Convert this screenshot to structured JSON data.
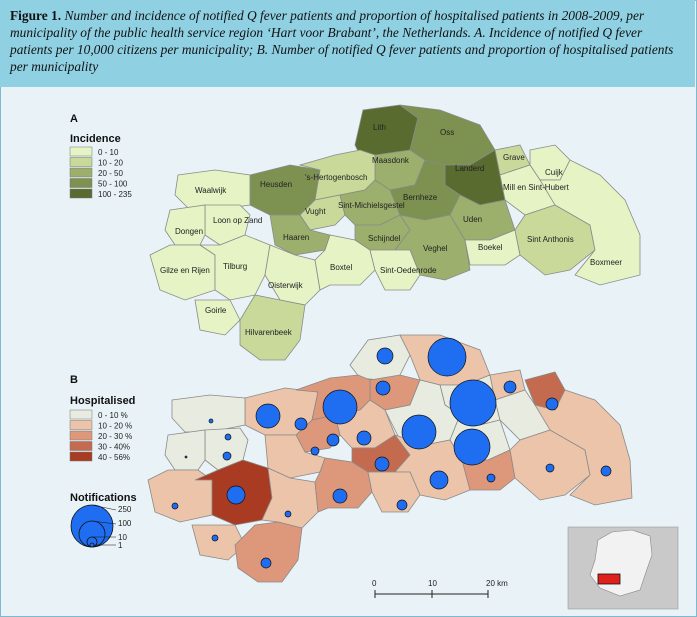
{
  "caption": {
    "fig": "Figure 1.",
    "text": "Number and incidence of notified Q fever patients and proportion of hospitalised patients in 2008-2009, per municipality of the public health service region ‘Hart voor Brabant’, the Netherlands. A. Incidence of notified Q fever patients per 10,000 citizens per municipality; B. Number of notified Q fever patients and proportion of hospitalised patients per municipality"
  },
  "panelA": {
    "letter": "A",
    "legend_title": "Incidence",
    "legend": [
      {
        "label": "0 - 10",
        "color": "#e5f3c5"
      },
      {
        "label": "10 - 20",
        "color": "#c8d99a"
      },
      {
        "label": "20 - 50",
        "color": "#9caf6c"
      },
      {
        "label": "50 - 100",
        "color": "#7d9150"
      },
      {
        "label": "100 - 235",
        "color": "#5a6b30"
      }
    ],
    "municipalities": [
      "Lith",
      "Oss",
      "Maasdonk",
      "Grave",
      "Cuijk",
      "Landerd",
      "Mill en Sint-Hubert",
      "Heusden",
      "'s-Hertogenbosch",
      "Waalwijk",
      "Loon op Zand",
      "Dongen",
      "Vught",
      "Sint-Michielsgestel",
      "Bernheze",
      "Uden",
      "Haaren",
      "Schijndel",
      "Veghel",
      "Boekel",
      "Sint Anthonis",
      "Boxmeer",
      "Gilze en Rijen",
      "Tilburg",
      "Oisterwijk",
      "Boxtel",
      "Sint-Oedenrode",
      "Goirle",
      "Hilvarenbeek"
    ]
  },
  "panelB": {
    "letter": "B",
    "legend_title": "Hospitalised",
    "legend": [
      {
        "label": "0 - 10 %",
        "color": "#e8ece0"
      },
      {
        "label": "10 - 20 %",
        "color": "#ecc4aa"
      },
      {
        "label": "20 - 30 %",
        "color": "#dd977a"
      },
      {
        "label": "30 - 40%",
        "color": "#c46a4e"
      },
      {
        "label": "40 - 56%",
        "color": "#a83b22"
      }
    ],
    "notif_title": "Notifications",
    "notif_values": [
      "250",
      "100",
      "10",
      "1"
    ]
  },
  "scale": {
    "ticks": [
      "0",
      "10",
      "20 km"
    ]
  },
  "colors": {
    "caption_bg": "#8fd1e3",
    "bubble": "#1f6ef2",
    "inset_highlight": "#e0201a"
  }
}
